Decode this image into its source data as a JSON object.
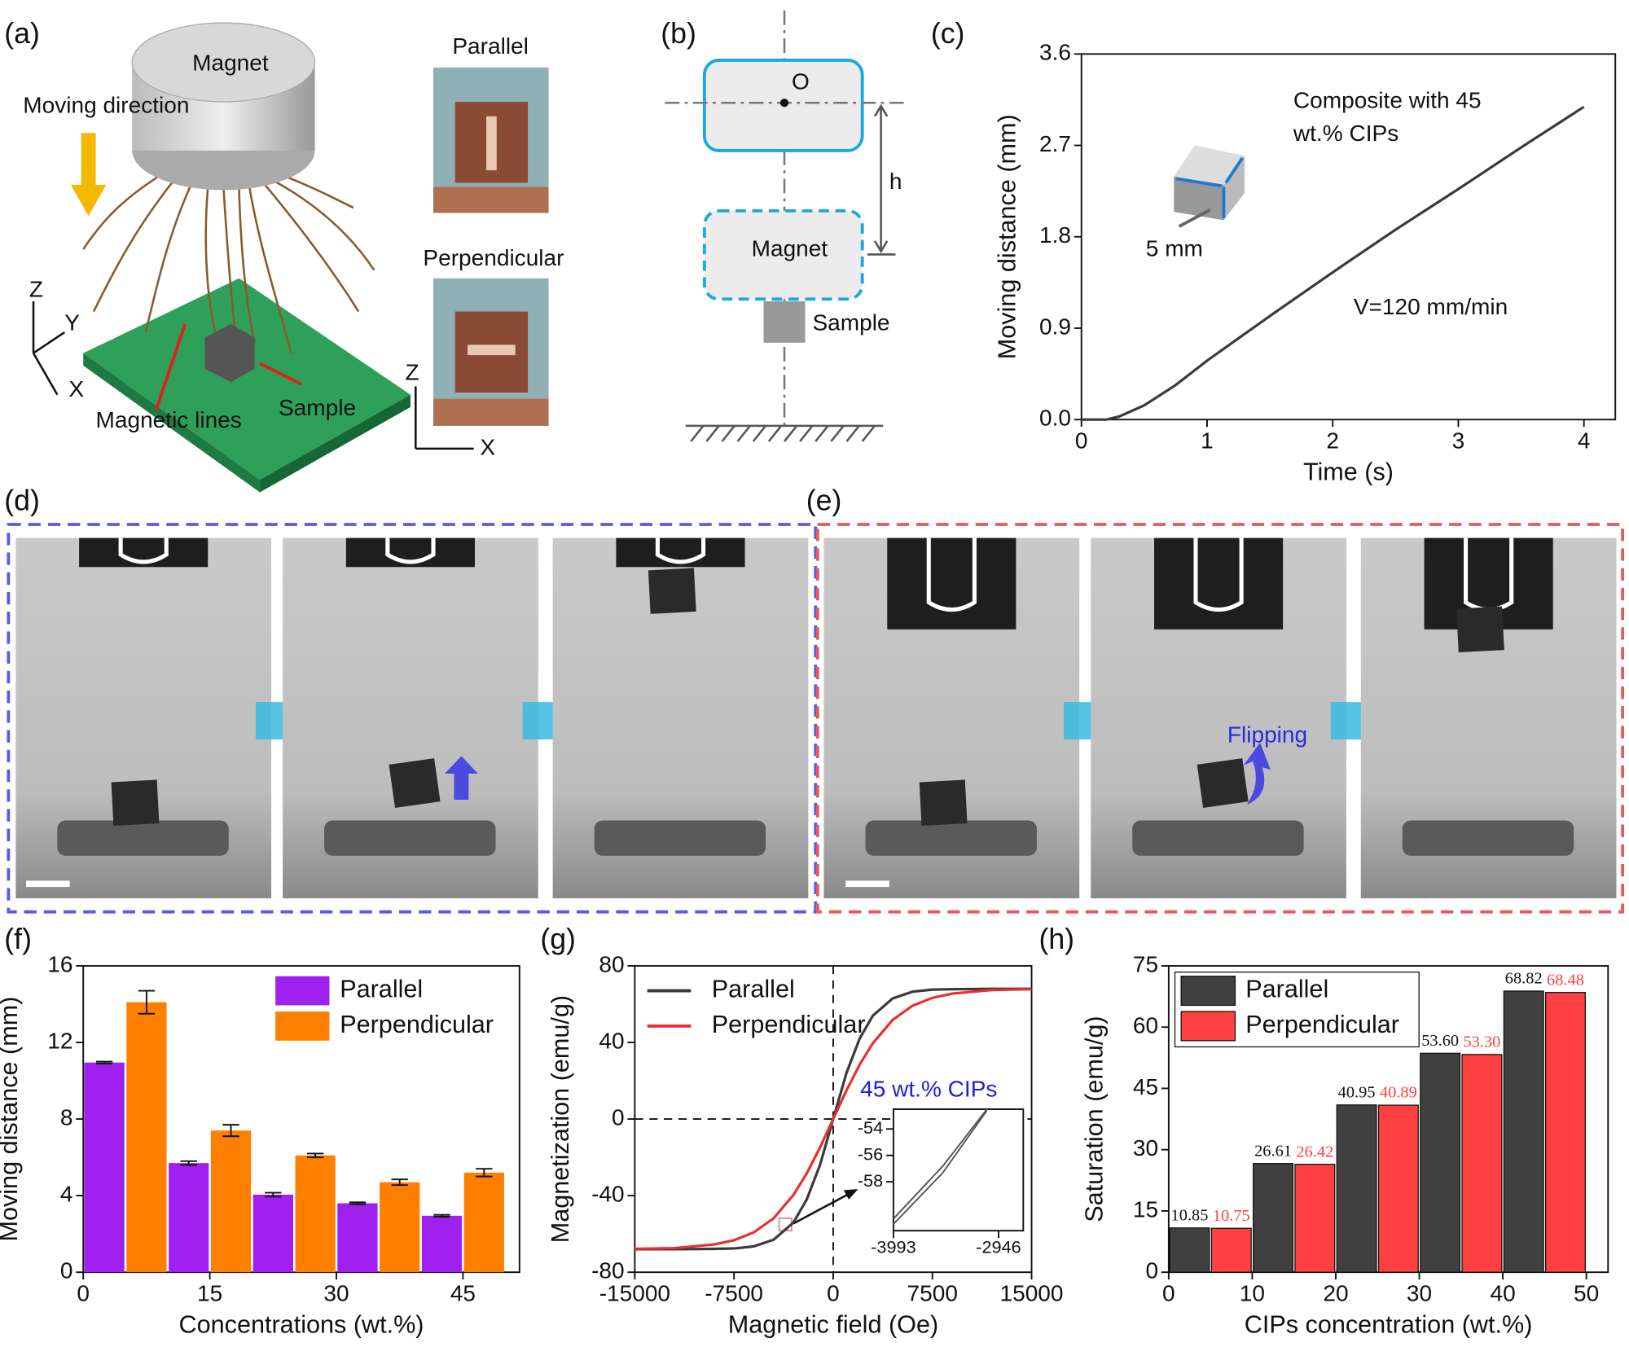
{
  "figure": {
    "panel_labels": [
      "(a)",
      "(b)",
      "(c)",
      "(d)",
      "(e)",
      "(f)",
      "(g)",
      "(h)"
    ],
    "a": {
      "magnet": "Magnet",
      "moving": "Moving direction",
      "z": "Z",
      "y": "Y",
      "x": "X",
      "lines": "Magnetic lines",
      "sample": "Sample",
      "parallel": "Parallel",
      "perpendicular": "Perpendicular",
      "z2": "Z",
      "x2": "X"
    },
    "b": {
      "o": "O",
      "h": "h",
      "magnet": "Magnet",
      "sample": "Sample"
    },
    "e": {
      "flipping": "Flipping"
    }
  },
  "chart_data": [
    {
      "type": "line",
      "x_label": "Time (s)",
      "y_label": "Moving distance (mm)",
      "annotations": [
        "Composite with 45",
        "wt.% CIPs",
        "V=120 mm/min",
        "5 mm"
      ],
      "x": [
        0,
        0.2,
        0.3,
        0.5,
        0.75,
        1,
        1.5,
        2,
        2.5,
        3,
        3.5,
        4
      ],
      "series": [
        {
          "color": "#3a3a3a",
          "values": [
            0,
            0,
            0.03,
            0.14,
            0.34,
            0.58,
            1.02,
            1.45,
            1.87,
            2.27,
            2.68,
            3.08
          ]
        }
      ],
      "xlim": [
        0,
        4.25
      ],
      "xticks": [
        0,
        1,
        2,
        3,
        4
      ],
      "ylim": [
        0,
        3.6
      ],
      "yticks": [
        {
          "value": 0,
          "label": "0.0"
        },
        0.9,
        1.8,
        2.7,
        3.6
      ]
    },
    {
      "type": "bar",
      "x_label": "Concentrations (wt.%)",
      "y_label": "Moving distance (mm)",
      "legend": "upper right",
      "x": [
        5,
        15,
        25,
        35,
        45
      ],
      "series": [
        {
          "name": "Parallel",
          "color": "#a020f0",
          "values": [
            10.95,
            5.7,
            4.05,
            3.6,
            2.95
          ],
          "errors": [
            0.05,
            0.1,
            0.1,
            0.05,
            0.05
          ]
        },
        {
          "name": "Perpendicular",
          "color": "#ff8000",
          "values": [
            14.1,
            7.4,
            6.1,
            4.7,
            5.2
          ],
          "errors": [
            0.6,
            0.3,
            0.1,
            0.15,
            0.2
          ]
        }
      ],
      "xlim": [
        0,
        51.7
      ],
      "xticks": [
        0,
        15,
        30,
        45
      ],
      "ylim": [
        0,
        16
      ],
      "yticks": [
        0,
        4,
        8,
        12,
        16
      ]
    },
    {
      "type": "line",
      "x_label": "Magnetic field (Oe)",
      "y_label": "Magnetization (emu/g)",
      "legend": "upper left",
      "annotations": [
        "45 wt.% CIPs"
      ],
      "x": [
        -15000,
        -12000,
        -9000,
        -7500,
        -6000,
        -4500,
        -3000,
        -2000,
        -1000,
        0,
        1000,
        2000,
        3000,
        4500,
        6000,
        7500,
        9000,
        12000,
        15000
      ],
      "series": [
        {
          "name": "Parallel",
          "color": "#3a3a3a",
          "values": [
            -68,
            -68,
            -67.8,
            -67.6,
            -66.5,
            -63,
            -54,
            -42,
            -24,
            0,
            24,
            42,
            54,
            63,
            66.5,
            67.6,
            67.8,
            68,
            68
          ]
        },
        {
          "name": "Perpendicular",
          "color": "#e8302e",
          "values": [
            -67.8,
            -67.4,
            -65.5,
            -63.3,
            -59.2,
            -51.8,
            -39.6,
            -28.4,
            -14.9,
            0,
            14.9,
            28.4,
            39.6,
            51.8,
            59.2,
            63.3,
            65.5,
            67.4,
            67.8
          ]
        }
      ],
      "xlim": [
        -15000,
        15000
      ],
      "xticks": [
        -15000,
        -7500,
        0,
        7500,
        15000
      ],
      "ylim": [
        -80,
        80
      ],
      "yticks": [
        -80,
        -40,
        0,
        40,
        80
      ]
    },
    {
      "type": "line",
      "x": [
        -3993,
        -3500,
        -3062
      ],
      "series": [
        {
          "color": "#555555",
          "values": [
            -61.2,
            -57.3,
            -52.6
          ]
        },
        {
          "color": "#555555",
          "values": [
            -60.8,
            -56.8,
            -52.5
          ]
        }
      ],
      "xlim": [
        -3993,
        -2700
      ],
      "xticks": [
        -3993,
        -2946
      ],
      "ylim": [
        -61.7,
        -52.5
      ],
      "yticks": [
        -54,
        -56,
        -58
      ]
    },
    {
      "type": "bar",
      "x_label": "CIPs concentration (wt.%)",
      "y_label": "Saturation (emu/g)",
      "legend": "upper left",
      "x": [
        5,
        15,
        25,
        35,
        45
      ],
      "series": [
        {
          "name": "Parallel",
          "color": "#404040",
          "values": [
            10.85,
            26.61,
            40.95,
            53.6,
            68.82
          ],
          "value_labels": [
            "10.85",
            "26.61",
            "40.95",
            "53.60",
            "68.82"
          ]
        },
        {
          "name": "Perpendicular",
          "color": "#ff4040",
          "values": [
            10.75,
            26.42,
            40.89,
            53.3,
            68.48
          ],
          "value_labels": [
            "10.75",
            "26.42",
            "40.89",
            "53.30",
            "68.48"
          ]
        }
      ],
      "xlim": [
        0,
        52.6
      ],
      "xticks": [
        0,
        10,
        20,
        30,
        40,
        50
      ],
      "ylim": [
        0,
        75
      ],
      "yticks": [
        0,
        15,
        30,
        45,
        60,
        75
      ]
    }
  ]
}
